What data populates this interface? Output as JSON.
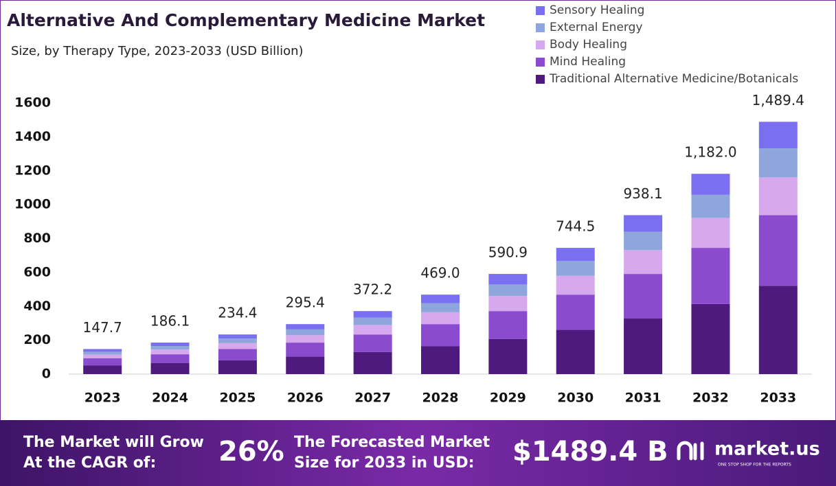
{
  "chart_data": {
    "type": "stacked_bar",
    "title": "Alternative And Complementary Medicine Market",
    "subtitle": "Size, by Therapy Type, 2023-2033 (USD Billion)",
    "categories": [
      "2023",
      "2024",
      "2025",
      "2026",
      "2027",
      "2028",
      "2029",
      "2030",
      "2031",
      "2032",
      "2033"
    ],
    "series": [
      {
        "name": "Traditional Alternative Medicine/Botanicals",
        "color": "#4e1a7e",
        "values": [
          52,
          65,
          82,
          103,
          130,
          164,
          207,
          261,
          328,
          414,
          521
        ]
      },
      {
        "name": "Mind Healing",
        "color": "#8a4bcf",
        "values": [
          41,
          52,
          66,
          83,
          104,
          131,
          165,
          208,
          263,
          331,
          417
        ]
      },
      {
        "name": "Body Healing",
        "color": "#d6a8ee",
        "values": [
          22,
          28,
          35,
          44,
          56,
          70,
          89,
          112,
          141,
          177,
          223
        ]
      },
      {
        "name": "External Energy",
        "color": "#8fa6dd",
        "values": [
          17,
          21,
          27,
          34,
          43,
          54,
          68,
          86,
          108,
          136,
          171
        ]
      },
      {
        "name": "Sensory Healing",
        "color": "#7a6ff0",
        "values": [
          16,
          20,
          24,
          31,
          39,
          50,
          62,
          78,
          98,
          124,
          157
        ]
      }
    ],
    "totals": [
      147.7,
      186.1,
      234.4,
      295.4,
      372.2,
      469.0,
      590.9,
      744.5,
      938.1,
      1182.0,
      1489.4
    ],
    "total_labels": [
      "147.7",
      "186.1",
      "234.4",
      "295.4",
      "372.2",
      "469.0",
      "590.9",
      "744.5",
      "938.1",
      "1,182.0",
      "1,489.4"
    ],
    "ylim": [
      0,
      1600
    ],
    "yticks": [
      0,
      200,
      400,
      600,
      800,
      1000,
      1200,
      1400,
      1600
    ],
    "grid": false
  },
  "footer": {
    "cagr_text": [
      "The Market will Grow",
      "At the CAGR of:"
    ],
    "cagr": "26%",
    "forecast_text": [
      "The Forecasted Market",
      "Size for 2033 in USD:"
    ],
    "forecast": "$1489.4 B",
    "brand": "market.us",
    "tagline": "ONE STOP SHOP FOR THE REPORTS"
  }
}
